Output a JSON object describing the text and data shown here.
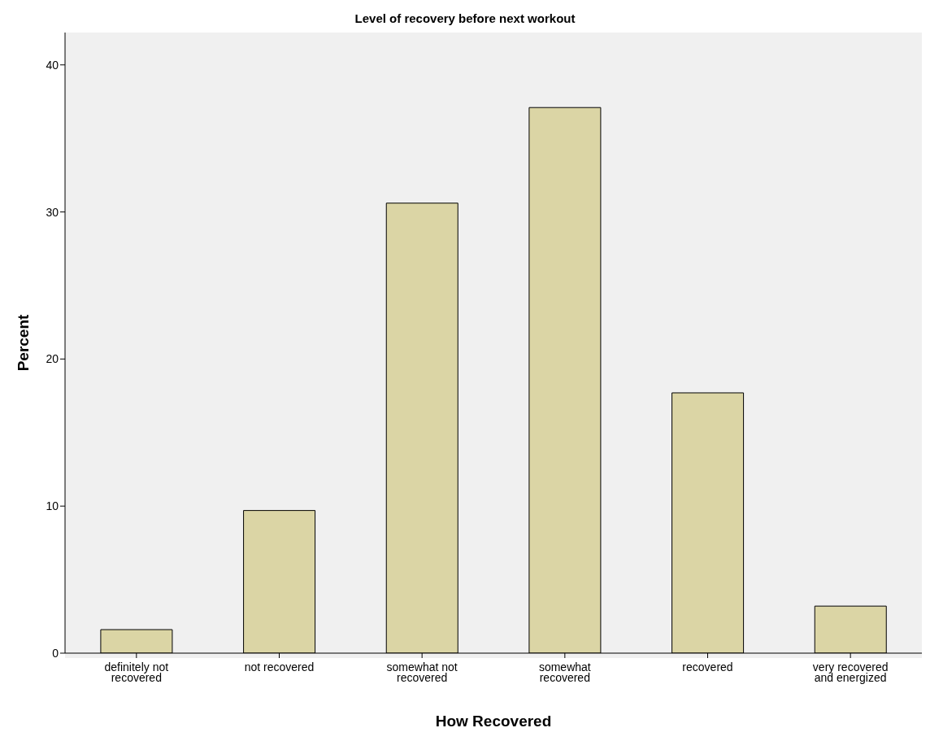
{
  "chart_data": {
    "type": "bar",
    "title": "Level of recovery before next workout",
    "xlabel": "How Recovered",
    "ylabel": "Percent",
    "categories": [
      "definitely not recovered",
      "not recovered",
      "somewhat not recovered",
      "somewhat recovered",
      "recovered",
      "very recovered and energized"
    ],
    "values": [
      1.6,
      9.7,
      30.6,
      37.1,
      17.7,
      3.2
    ],
    "color": "#dbd5a5",
    "ylim": [
      0,
      42.2
    ],
    "yticks": [
      0,
      10,
      20,
      30,
      40
    ],
    "grid": false,
    "legend": false
  }
}
